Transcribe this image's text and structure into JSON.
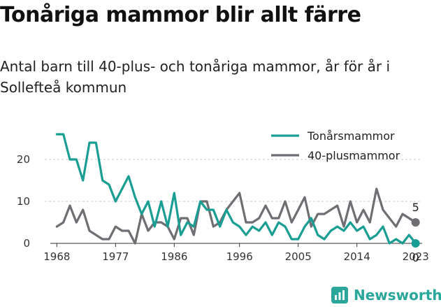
{
  "header": {
    "title": "Tonåriga mammor blir allt färre",
    "subtitle": "Antal barn till 40-plus- och tonåriga mammor, år för år i Sollefteå kommun"
  },
  "brand": {
    "name": "Newsworthy"
  },
  "chart_data": {
    "type": "line",
    "title": "",
    "xlabel": "",
    "ylabel": "",
    "x_ticks": [
      "1968",
      "1977",
      "1986",
      "1996",
      "2005",
      "2014",
      "2023"
    ],
    "y_ticks": [
      "0",
      "10",
      "20"
    ],
    "xlim": [
      1967,
      2024
    ],
    "ylim": [
      0,
      28
    ],
    "grid": "horizontal dashed",
    "legend": "top-right",
    "x": [
      1968,
      1969,
      1970,
      1971,
      1972,
      1973,
      1974,
      1975,
      1976,
      1977,
      1978,
      1979,
      1980,
      1981,
      1982,
      1983,
      1984,
      1985,
      1986,
      1987,
      1988,
      1989,
      1990,
      1991,
      1992,
      1993,
      1994,
      1995,
      1996,
      1997,
      1998,
      1999,
      2000,
      2001,
      2002,
      2003,
      2004,
      2005,
      2006,
      2007,
      2008,
      2009,
      2010,
      2011,
      2012,
      2013,
      2014,
      2015,
      2016,
      2017,
      2018,
      2019,
      2020,
      2021,
      2022,
      2023
    ],
    "series": [
      {
        "name": "Tonårsmammor",
        "color": "#1a9e94",
        "values": [
          26,
          26,
          20,
          20,
          15,
          24,
          24,
          15,
          14,
          10,
          13,
          16,
          11,
          7,
          10,
          4,
          10,
          4,
          12,
          2,
          5,
          4,
          10,
          8,
          8,
          4,
          8,
          5,
          4,
          2,
          4,
          3,
          5,
          2,
          5,
          4,
          1,
          1,
          4,
          6,
          2,
          1,
          3,
          4,
          3,
          5,
          3,
          4,
          1,
          2,
          4,
          0,
          1,
          0,
          2,
          0
        ],
        "end_label": "0"
      },
      {
        "name": "40-plusmammor",
        "color": "#6e6e73",
        "values": [
          4,
          5,
          9,
          5,
          8,
          3,
          2,
          1,
          1,
          4,
          3,
          3,
          0,
          7,
          3,
          5,
          5,
          4,
          1,
          6,
          6,
          2,
          10,
          10,
          4,
          5,
          8,
          10,
          12,
          5,
          5,
          6,
          9,
          6,
          6,
          10,
          5,
          8,
          11,
          4,
          7,
          7,
          8,
          9,
          4,
          10,
          5,
          8,
          5,
          13,
          8,
          6,
          4,
          7,
          6,
          5
        ],
        "end_label": "5"
      }
    ]
  }
}
